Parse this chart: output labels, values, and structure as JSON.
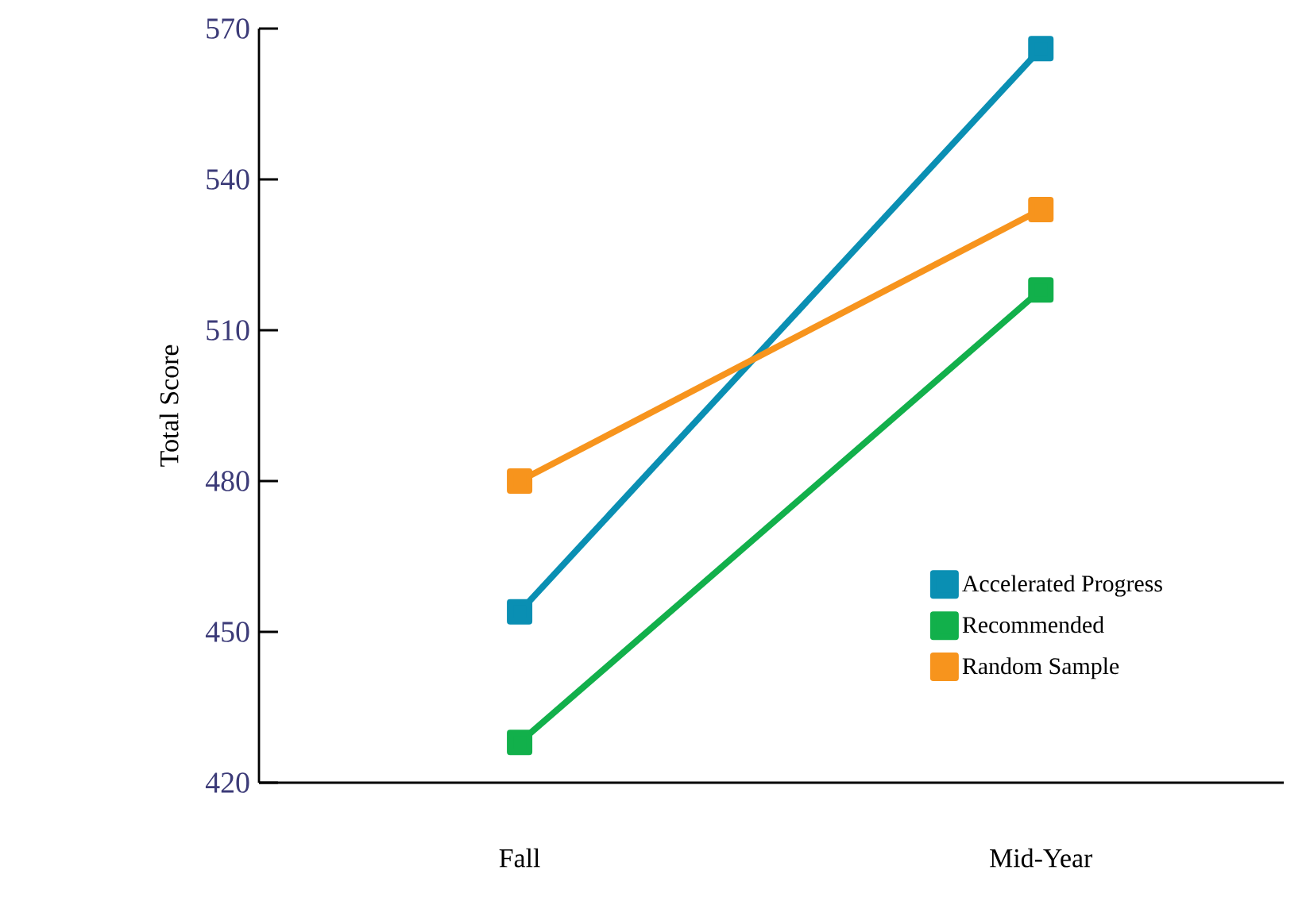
{
  "chart_data": {
    "type": "line",
    "ylabel": "Total Score",
    "categories": [
      "Fall",
      "Mid-Year"
    ],
    "series": [
      {
        "name": "Accelerated Progress",
        "color": "#0a8fb3",
        "values": [
          454,
          566
        ]
      },
      {
        "name": "Recommended",
        "color": "#12b04b",
        "values": [
          428,
          518
        ]
      },
      {
        "name": "Random Sample",
        "color": "#f7941d",
        "values": [
          480,
          534
        ]
      }
    ],
    "ylim": [
      420,
      570
    ],
    "yticks": [
      420,
      450,
      480,
      510,
      540,
      570
    ],
    "marker": "square",
    "line_style": "solid",
    "legend": "bottom right",
    "grid": false
  }
}
